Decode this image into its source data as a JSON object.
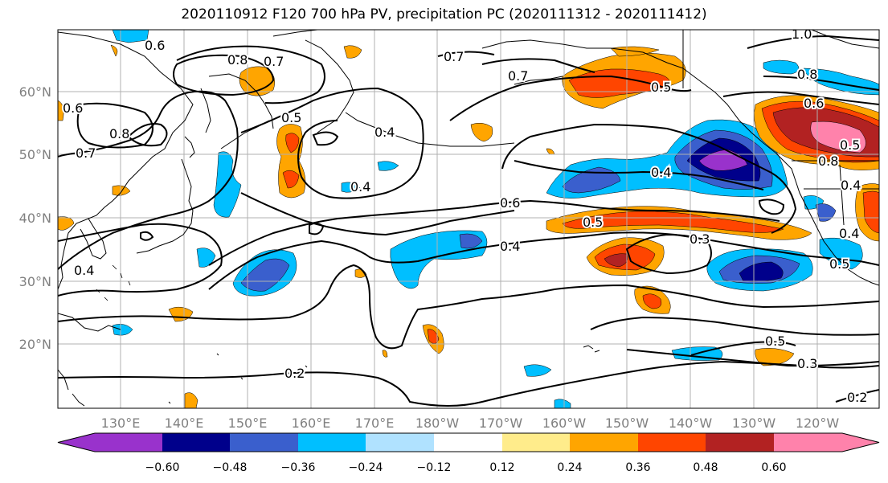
{
  "title": "2020110912 F120 700 hPa PV, precipitation PC (2020111312 - 2020111412)",
  "lat_labels": [
    "60°N",
    "50°N",
    "40°N",
    "30°N",
    "20°N"
  ],
  "lon_labels": [
    "130°E",
    "140°E",
    "150°E",
    "160°E",
    "170°E",
    "180°W",
    "170°W",
    "160°W",
    "150°W",
    "140°W",
    "130°W",
    "120°W"
  ],
  "contour_labels": [
    "0.6",
    "0.8",
    "0.7",
    "0.7",
    "0.5",
    "0.4",
    "0.6",
    "0.8",
    "0.7",
    "0.5",
    "0.7",
    "0.4",
    "1.0",
    "0.8",
    "0.6",
    "0.5",
    "0.8",
    "0.4",
    "0.6",
    "0.5",
    "0.4",
    "0.3",
    "0.4",
    "0.5",
    "0.5",
    "0.3",
    "0.2",
    "0.2",
    "0.4",
    "0.4"
  ],
  "colorbar": {
    "ticks": [
      "−0.60",
      "−0.48",
      "−0.36",
      "−0.24",
      "−0.12",
      "0.12",
      "0.24",
      "0.36",
      "0.48",
      "0.60"
    ],
    "colors": [
      "#9932cc",
      "#00008b",
      "#3a5fcd",
      "#00bfff",
      "#b0e2ff",
      "#ffffff",
      "#ffec8b",
      "#ffa500",
      "#ff4500",
      "#b22222",
      "#ff82ab"
    ]
  },
  "palette": {
    "purple": "#9932cc",
    "navy": "#00008b",
    "blue": "#3a5fcd",
    "cyan": "#00bfff",
    "lightcyan": "#b0e2ff",
    "yellow": "#ffec8b",
    "orange": "#ffa500",
    "redorange": "#ff4500",
    "firebrick": "#b22222",
    "pink": "#ff82ab"
  }
}
